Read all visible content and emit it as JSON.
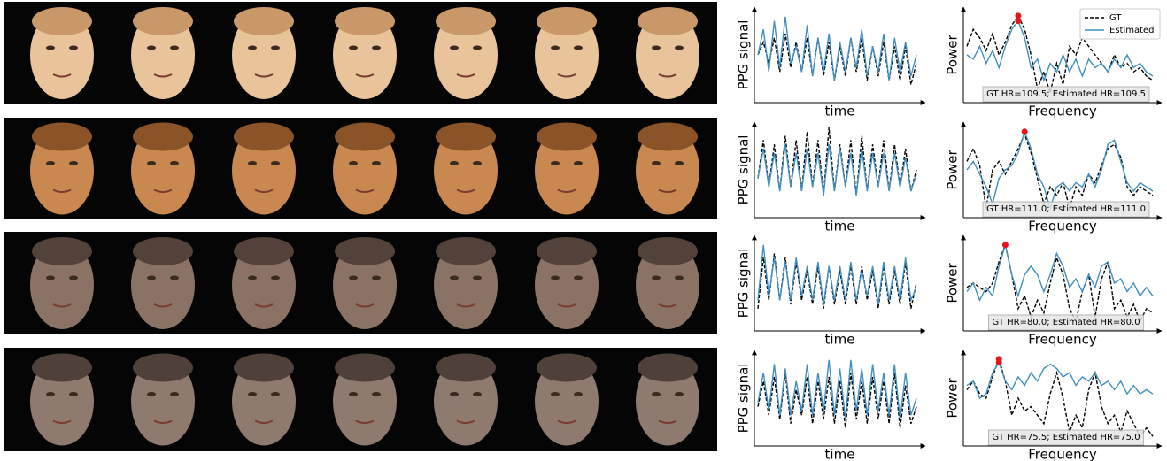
{
  "chart_data": [
    {
      "type": "line",
      "xlabel": "time",
      "ylabel": "PPG signal",
      "ylim": [
        0,
        1
      ],
      "series": [
        {
          "name": "GT",
          "color": "#000000",
          "linestyle": "dashed",
          "values": [
            0.5,
            0.65,
            0.4,
            0.7,
            0.3,
            0.75,
            0.35,
            0.65,
            0.3,
            0.7,
            0.25,
            0.7,
            0.25,
            0.65,
            0.2,
            0.6,
            0.25,
            0.7,
            0.3,
            0.7,
            0.2,
            0.6,
            0.25,
            0.65,
            0.2,
            0.6,
            0.2,
            0.6,
            0.15,
            0.4
          ]
        },
        {
          "name": "Estimated",
          "color": "#3f8fc4",
          "linestyle": "solid",
          "values": [
            0.5,
            0.8,
            0.3,
            0.9,
            0.35,
            0.95,
            0.4,
            0.6,
            0.3,
            0.85,
            0.25,
            0.7,
            0.3,
            0.75,
            0.2,
            0.65,
            0.3,
            0.7,
            0.35,
            0.8,
            0.25,
            0.6,
            0.3,
            0.75,
            0.2,
            0.7,
            0.3,
            0.65,
            0.25,
            0.5
          ]
        }
      ]
    },
    {
      "type": "line",
      "xlabel": "Frequency",
      "ylabel": "Power",
      "ylim": [
        0,
        1
      ],
      "legend": "upper right",
      "peak_color": "#e8141a",
      "annotation": "GT HR=109.5; Estimated HR=109.5",
      "series": [
        {
          "name": "GT",
          "color": "#000000",
          "linestyle": "dashed",
          "values": [
            0.6,
            0.8,
            0.7,
            0.55,
            0.75,
            0.5,
            0.65,
            0.85,
            0.96,
            0.8,
            0.5,
            0.1,
            0.3,
            0.05,
            0.4,
            0.15,
            0.6,
            0.5,
            0.7,
            0.6,
            0.5,
            0.4,
            0.3,
            0.5,
            0.35,
            0.4,
            0.3,
            0.35,
            0.25,
            0.2
          ]
        },
        {
          "name": "Estimated",
          "color": "#3f8fc4",
          "linestyle": "solid",
          "values": [
            0.5,
            0.45,
            0.6,
            0.4,
            0.55,
            0.35,
            0.6,
            0.8,
            0.9,
            0.7,
            0.35,
            0.45,
            0.2,
            0.4,
            0.3,
            0.5,
            0.3,
            0.45,
            0.25,
            0.45,
            0.35,
            0.4,
            0.3,
            0.45,
            0.35,
            0.5,
            0.35,
            0.4,
            0.3,
            0.25
          ]
        }
      ],
      "peaks": [
        {
          "x": 8,
          "y": 0.96
        },
        {
          "x": 8,
          "y": 0.9
        }
      ]
    },
    {
      "type": "line",
      "xlabel": "time",
      "ylabel": "PPG signal",
      "ylim": [
        0,
        1
      ],
      "series": [
        {
          "name": "GT",
          "color": "#000000",
          "linestyle": "dashed",
          "values": [
            0.4,
            0.85,
            0.3,
            0.8,
            0.25,
            0.9,
            0.3,
            0.85,
            0.25,
            0.95,
            0.3,
            0.85,
            0.2,
            1.0,
            0.25,
            0.8,
            0.3,
            0.85,
            0.2,
            0.9,
            0.25,
            0.8,
            0.3,
            0.85,
            0.25,
            0.8,
            0.3,
            0.75,
            0.25,
            0.5
          ]
        },
        {
          "name": "Estimated",
          "color": "#3f8fc4",
          "linestyle": "solid",
          "values": [
            0.4,
            0.75,
            0.3,
            0.7,
            0.25,
            0.8,
            0.3,
            0.7,
            0.25,
            0.75,
            0.3,
            0.7,
            0.2,
            0.8,
            0.25,
            0.75,
            0.3,
            0.7,
            0.2,
            0.75,
            0.25,
            0.7,
            0.3,
            0.7,
            0.25,
            0.7,
            0.3,
            0.65,
            0.25,
            0.45
          ]
        }
      ]
    },
    {
      "type": "line",
      "xlabel": "Frequency",
      "ylabel": "Power",
      "ylim": [
        0,
        1
      ],
      "peak_color": "#e8141a",
      "annotation": "GT HR=111.0; Estimated HR=111.0",
      "series": [
        {
          "name": "GT",
          "color": "#000000",
          "linestyle": "dashed",
          "values": [
            0.6,
            0.75,
            0.55,
            0.05,
            0.5,
            0.6,
            0.45,
            0.6,
            0.75,
            0.92,
            0.7,
            0.4,
            0.1,
            0.3,
            0.2,
            0.35,
            0.05,
            0.3,
            0.2,
            0.45,
            0.35,
            0.55,
            0.75,
            0.8,
            0.65,
            0.3,
            0.2,
            0.3,
            0.25,
            0.2
          ]
        },
        {
          "name": "Estimated",
          "color": "#3f8fc4",
          "linestyle": "solid",
          "values": [
            0.5,
            0.6,
            0.45,
            0.3,
            0.1,
            0.4,
            0.5,
            0.55,
            0.7,
            0.95,
            0.75,
            0.45,
            0.3,
            0.05,
            0.3,
            0.35,
            0.25,
            0.35,
            0.3,
            0.45,
            0.3,
            0.5,
            0.8,
            0.85,
            0.6,
            0.35,
            0.25,
            0.35,
            0.3,
            0.25
          ]
        }
      ],
      "peaks": [
        {
          "x": 9,
          "y": 0.95
        }
      ]
    },
    {
      "type": "line",
      "xlabel": "time",
      "ylabel": "PPG signal",
      "ylim": [
        0,
        1
      ],
      "series": [
        {
          "name": "GT",
          "color": "#000000",
          "linestyle": "dashed",
          "values": [
            0.2,
            0.8,
            0.3,
            0.85,
            0.3,
            0.8,
            0.25,
            0.75,
            0.3,
            0.65,
            0.25,
            0.7,
            0.2,
            0.7,
            0.25,
            0.65,
            0.25,
            0.7,
            0.25,
            0.7,
            0.3,
            0.65,
            0.2,
            0.7,
            0.25,
            0.65,
            0.25,
            0.75,
            0.2,
            0.5
          ]
        },
        {
          "name": "Estimated",
          "color": "#3f8fc4",
          "linestyle": "solid",
          "values": [
            0.3,
            0.95,
            0.35,
            0.8,
            0.3,
            0.75,
            0.3,
            0.8,
            0.35,
            0.7,
            0.3,
            0.75,
            0.25,
            0.7,
            0.3,
            0.7,
            0.3,
            0.75,
            0.3,
            0.65,
            0.35,
            0.7,
            0.25,
            0.75,
            0.3,
            0.7,
            0.3,
            0.8,
            0.3,
            0.45
          ]
        }
      ]
    },
    {
      "type": "line",
      "xlabel": "Frequency",
      "ylabel": "Power",
      "ylim": [
        0,
        1
      ],
      "peak_color": "#e8141a",
      "annotation": "GT HR=80.0; Estimated HR=80.0",
      "series": [
        {
          "name": "GT",
          "color": "#000000",
          "linestyle": "dashed",
          "values": [
            0.45,
            0.5,
            0.45,
            0.4,
            0.5,
            0.75,
            0.95,
            0.6,
            0.2,
            0.35,
            0.1,
            0.3,
            0.15,
            0.5,
            0.8,
            0.6,
            0.2,
            0.05,
            0.4,
            0.6,
            0.1,
            0.55,
            0.75,
            0.2,
            0.3,
            0.1,
            0.25,
            0.05,
            0.2,
            0.15
          ]
        },
        {
          "name": "Estimated",
          "color": "#3f8fc4",
          "linestyle": "solid",
          "values": [
            0.4,
            0.5,
            0.3,
            0.45,
            0.35,
            0.7,
            0.95,
            0.6,
            0.35,
            0.6,
            0.7,
            0.6,
            0.4,
            0.6,
            0.85,
            0.7,
            0.45,
            0.55,
            0.4,
            0.6,
            0.45,
            0.7,
            0.75,
            0.5,
            0.55,
            0.4,
            0.5,
            0.35,
            0.45,
            0.35
          ]
        }
      ],
      "peaks": [
        {
          "x": 6,
          "y": 0.95
        }
      ]
    },
    {
      "type": "line",
      "xlabel": "time",
      "ylabel": "PPG signal",
      "ylim": [
        0,
        1
      ],
      "series": [
        {
          "name": "GT",
          "color": "#000000",
          "linestyle": "dashed",
          "values": [
            0.4,
            0.7,
            0.3,
            0.75,
            0.25,
            0.8,
            0.2,
            0.6,
            0.3,
            0.75,
            0.2,
            0.7,
            0.25,
            0.75,
            0.2,
            0.7,
            0.15,
            0.8,
            0.25,
            0.7,
            0.2,
            0.75,
            0.25,
            0.7,
            0.2,
            0.8,
            0.15,
            0.65,
            0.2,
            0.4
          ]
        },
        {
          "name": "Estimated",
          "color": "#3f8fc4",
          "linestyle": "solid",
          "values": [
            0.45,
            0.8,
            0.35,
            0.9,
            0.3,
            0.85,
            0.3,
            0.7,
            0.35,
            0.9,
            0.3,
            0.8,
            0.35,
            0.95,
            0.3,
            0.85,
            0.25,
            0.95,
            0.35,
            0.85,
            0.3,
            0.9,
            0.35,
            0.8,
            0.3,
            0.9,
            0.25,
            0.8,
            0.3,
            0.5
          ]
        }
      ]
    },
    {
      "type": "line",
      "xlabel": "Frequency",
      "ylabel": "Power",
      "ylim": [
        0,
        1
      ],
      "peak_color": "#e8141a",
      "annotation": "GT HR=75.5; Estimated HR=75.0",
      "series": [
        {
          "name": "GT",
          "color": "#000000",
          "linestyle": "dashed",
          "values": [
            0.6,
            0.7,
            0.55,
            0.5,
            0.75,
            0.96,
            0.7,
            0.3,
            0.5,
            0.35,
            0.4,
            0.3,
            0.2,
            0.55,
            0.8,
            0.5,
            0.1,
            0.3,
            0.15,
            0.6,
            0.8,
            0.4,
            0.2,
            0.3,
            0.1,
            0.35,
            0.2,
            0.05,
            0.15,
            0.05
          ]
        },
        {
          "name": "Estimated",
          "color": "#3f8fc4",
          "linestyle": "solid",
          "values": [
            0.65,
            0.7,
            0.5,
            0.55,
            0.8,
            0.92,
            0.7,
            0.6,
            0.75,
            0.65,
            0.8,
            0.7,
            0.85,
            0.9,
            0.85,
            0.75,
            0.8,
            0.65,
            0.75,
            0.7,
            0.8,
            0.65,
            0.7,
            0.6,
            0.7,
            0.55,
            0.65,
            0.55,
            0.6,
            0.55
          ]
        }
      ],
      "peaks": [
        {
          "x": 5,
          "y": 0.96
        },
        {
          "x": 5,
          "y": 0.92
        }
      ]
    }
  ]
}
